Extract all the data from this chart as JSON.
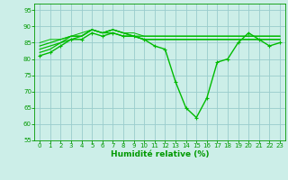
{
  "series": [
    {
      "x": [
        0,
        1,
        2,
        3,
        4,
        5,
        6,
        7,
        8,
        9,
        10,
        11,
        12,
        13,
        14,
        15,
        16,
        17,
        18,
        19,
        20,
        21,
        22,
        23
      ],
      "y": [
        81,
        82,
        84,
        86,
        86,
        88,
        87,
        88,
        87,
        87,
        86,
        84,
        83,
        73,
        65,
        62,
        68,
        79,
        80,
        85,
        88,
        86,
        84,
        85
      ],
      "marker": true,
      "lw": 1.0
    },
    {
      "x": [
        0,
        1,
        2,
        3,
        4,
        5,
        6,
        7,
        8,
        9,
        10,
        11,
        12,
        13,
        14,
        15,
        16,
        17,
        18,
        19,
        20,
        21,
        22,
        23
      ],
      "y": [
        82,
        83,
        85,
        86,
        87,
        89,
        88,
        88,
        87,
        87,
        86,
        86,
        86,
        86,
        86,
        86,
        86,
        86,
        86,
        86,
        86,
        86,
        86,
        86
      ],
      "marker": false,
      "lw": 0.9
    },
    {
      "x": [
        0,
        1,
        2,
        3,
        4,
        5,
        6,
        7,
        8,
        9,
        10,
        11,
        12,
        13,
        14,
        15,
        16,
        17,
        18,
        19,
        20,
        21,
        22,
        23
      ],
      "y": [
        83,
        84,
        85,
        87,
        87,
        89,
        88,
        89,
        88,
        87,
        86,
        86,
        86,
        86,
        86,
        86,
        86,
        86,
        86,
        86,
        86,
        86,
        86,
        86
      ],
      "marker": false,
      "lw": 0.9
    },
    {
      "x": [
        0,
        1,
        2,
        3,
        4,
        5,
        6,
        7,
        8,
        9,
        10,
        11,
        12,
        13,
        14,
        15,
        16,
        17,
        18,
        19,
        20,
        21,
        22,
        23
      ],
      "y": [
        84,
        85,
        86,
        87,
        87,
        89,
        88,
        89,
        88,
        87,
        87,
        87,
        87,
        87,
        87,
        87,
        87,
        87,
        87,
        87,
        87,
        87,
        87,
        87
      ],
      "marker": false,
      "lw": 0.9
    },
    {
      "x": [
        0,
        1,
        2,
        3,
        4,
        5,
        6,
        7,
        8,
        9,
        10,
        11,
        12,
        13,
        14,
        15,
        16,
        17,
        18,
        19,
        20,
        21,
        22,
        23
      ],
      "y": [
        85,
        86,
        86,
        87,
        88,
        89,
        88,
        89,
        88,
        88,
        87,
        87,
        87,
        87,
        87,
        87,
        87,
        87,
        87,
        87,
        87,
        87,
        87,
        87
      ],
      "marker": false,
      "lw": 0.7
    }
  ],
  "xlabel": "Humidité relative (%)",
  "xlim": [
    -0.5,
    23.5
  ],
  "ylim": [
    55,
    97
  ],
  "yticks": [
    55,
    60,
    65,
    70,
    75,
    80,
    85,
    90,
    95
  ],
  "xticks": [
    0,
    1,
    2,
    3,
    4,
    5,
    6,
    7,
    8,
    9,
    10,
    11,
    12,
    13,
    14,
    15,
    16,
    17,
    18,
    19,
    20,
    21,
    22,
    23
  ],
  "bg_color": "#cceee8",
  "grid_color": "#99cccc",
  "line_color": "#00bb00",
  "label_color": "#009900",
  "tick_color": "#009900",
  "spine_color": "#009900",
  "xlabel_fontsize": 6.5,
  "tick_fontsize": 5.0,
  "marker_size": 2.5
}
